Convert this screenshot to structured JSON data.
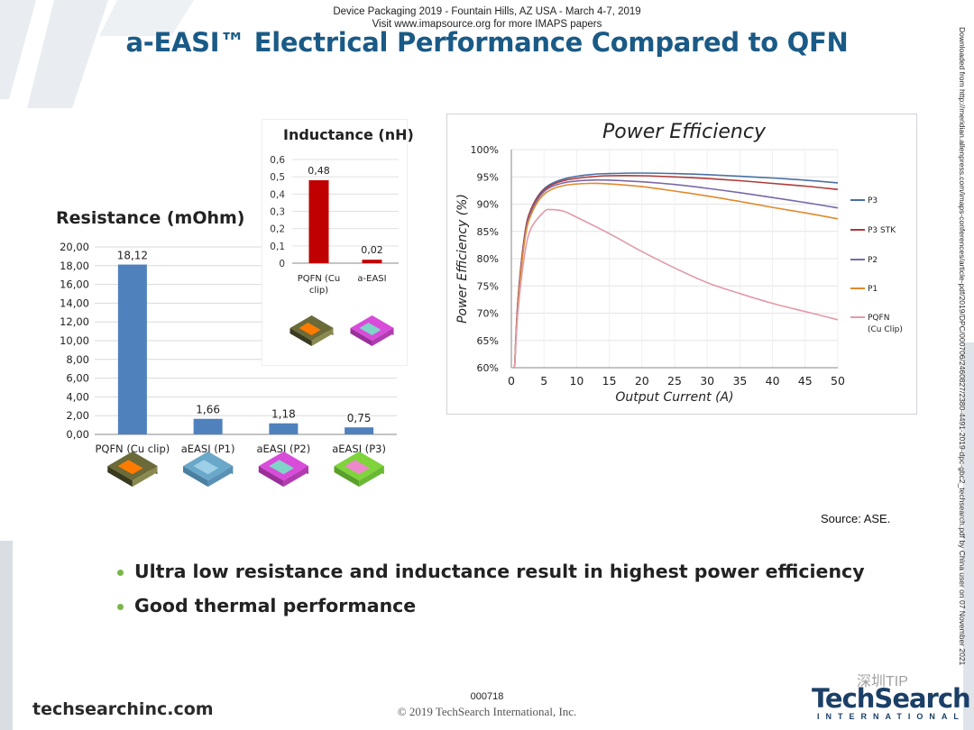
{
  "header": {
    "conference": "Device Packaging 2019 - Fountain Hills, AZ USA - March 4-7, 2019",
    "visit": "Visit www.imapsource.org for more IMAPS papers"
  },
  "title": "a-EASI™ Electrical Performance Compared to QFN",
  "side_note": "Downloaded from http://meridian.allenpress.com/imaps-conferences/article-pdf/2019/DPC/000706/2460827/2380-4491-2019-dpc-gbc2_techsearch.pdf by China user on 07 November 2021",
  "source": "Source:  ASE.",
  "bullets": [
    "Ultra low resistance and inductance result in highest power efficiency",
    "Good thermal performance"
  ],
  "footer": {
    "site": "techsearchinc.com",
    "page": "000718",
    "copyright": "© 2019 TechSearch International, Inc.",
    "logo_name": "TechSearch",
    "logo_sub": "INTERNATIONAL",
    "watermark": "深圳TIP"
  },
  "colors": {
    "title": "#1a5a86",
    "bar_blue": "#4f81bd",
    "bar_red": "#c00000",
    "bullet": "#7ab648"
  },
  "chart_data": [
    {
      "type": "bar",
      "title": "Resistance (mOhm)",
      "categories": [
        "PQFN (Cu clip)",
        "aEASI (P1)",
        "aEASI (P2)",
        "aEASI (P3)"
      ],
      "values": [
        18.12,
        1.66,
        1.18,
        0.75
      ],
      "value_labels": [
        "18,12",
        "1,66",
        "1,18",
        "0,75"
      ],
      "ylim": [
        0,
        20
      ],
      "yticks": [
        "0,00",
        "2,00",
        "4,00",
        "6,00",
        "8,00",
        "10,00",
        "12,00",
        "14,00",
        "16,00",
        "18,00",
        "20,00"
      ],
      "grid": true,
      "color": "#4f81bd",
      "package_icons": [
        "pqfn-package-icon",
        "aeasi-p1-package-icon",
        "aeasi-p2-package-icon",
        "aeasi-p3-package-icon"
      ]
    },
    {
      "type": "bar",
      "title": "Inductance (nH)",
      "categories": [
        "PQFN (Cu clip)",
        "a-EASI"
      ],
      "values": [
        0.48,
        0.02
      ],
      "value_labels": [
        "0,48",
        "0,02"
      ],
      "ylim": [
        0,
        0.6
      ],
      "yticks": [
        "0",
        "0,1",
        "0,2",
        "0,3",
        "0,4",
        "0,5",
        "0,6"
      ],
      "grid": true,
      "color": "#c00000",
      "package_icons": [
        "pqfn-package-icon",
        "aeasi-package-icon"
      ]
    },
    {
      "type": "line",
      "title": "Power Efficiency",
      "xlabel": "Output Current (A)",
      "ylabel": "Power Efficiency (%)",
      "xlim": [
        0,
        50
      ],
      "ylim": [
        60,
        100
      ],
      "xticks": [
        0,
        5,
        10,
        15,
        20,
        25,
        30,
        35,
        40,
        45,
        50
      ],
      "yticks": [
        "60%",
        "65%",
        "70%",
        "75%",
        "80%",
        "85%",
        "90%",
        "95%",
        "100%"
      ],
      "grid": true,
      "legend": "right",
      "series": [
        {
          "name": "P3",
          "color": "#4a6fa5",
          "x": [
            0.5,
            1,
            2,
            3,
            5,
            8,
            12,
            15,
            20,
            25,
            30,
            35,
            40,
            45,
            50
          ],
          "y": [
            60,
            72,
            84,
            89,
            92.8,
            94.6,
            95.4,
            95.6,
            95.7,
            95.6,
            95.4,
            95.1,
            94.8,
            94.4,
            93.9
          ]
        },
        {
          "name": "P3 STK",
          "color": "#b03a3a",
          "x": [
            0.5,
            1,
            2,
            3,
            5,
            8,
            12,
            15,
            20,
            25,
            30,
            35,
            40,
            45,
            50
          ],
          "y": [
            60,
            72,
            84,
            89,
            92.6,
            94.3,
            95,
            95.2,
            95.2,
            95,
            94.7,
            94.3,
            93.8,
            93.3,
            92.7
          ]
        },
        {
          "name": "P2",
          "color": "#7a68a8",
          "x": [
            0.5,
            1,
            2,
            3,
            5,
            8,
            12,
            15,
            20,
            25,
            30,
            35,
            40,
            45,
            50
          ],
          "y": [
            60,
            71.5,
            83.5,
            88.5,
            92.3,
            93.9,
            94.4,
            94.4,
            94.1,
            93.6,
            92.9,
            92.1,
            91.2,
            90.3,
            89.3
          ]
        },
        {
          "name": "P1",
          "color": "#e08a2e",
          "x": [
            0.5,
            1,
            2,
            3,
            5,
            8,
            12,
            15,
            20,
            25,
            30,
            35,
            40,
            45,
            50
          ],
          "y": [
            60,
            71,
            83,
            88,
            91.8,
            93.4,
            93.8,
            93.7,
            93.2,
            92.4,
            91.5,
            90.5,
            89.4,
            88.4,
            87.3
          ]
        },
        {
          "name": "PQFN\n(Cu Clip)",
          "color": "#e29aa8",
          "x": [
            0.5,
            1,
            2,
            3,
            5,
            6,
            8,
            10,
            15,
            20,
            25,
            30,
            35,
            40,
            45,
            50
          ],
          "y": [
            60,
            70,
            80.5,
            85.5,
            88.6,
            89,
            88.7,
            87.6,
            84.6,
            81.3,
            78.3,
            75.6,
            73.6,
            71.8,
            70.3,
            68.8
          ]
        }
      ]
    }
  ]
}
